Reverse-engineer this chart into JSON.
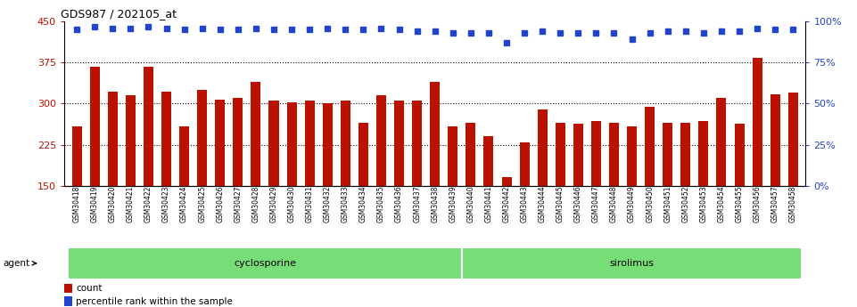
{
  "title": "GDS987 / 202105_at",
  "categories": [
    "GSM30418",
    "GSM30419",
    "GSM30420",
    "GSM30421",
    "GSM30422",
    "GSM30423",
    "GSM30424",
    "GSM30425",
    "GSM30426",
    "GSM30427",
    "GSM30428",
    "GSM30429",
    "GSM30430",
    "GSM30431",
    "GSM30432",
    "GSM30433",
    "GSM30434",
    "GSM30435",
    "GSM30436",
    "GSM30437",
    "GSM30438",
    "GSM30439",
    "GSM30440",
    "GSM30441",
    "GSM30442",
    "GSM30443",
    "GSM30444",
    "GSM30445",
    "GSM30446",
    "GSM30447",
    "GSM30448",
    "GSM30449",
    "GSM30450",
    "GSM30451",
    "GSM30452",
    "GSM30453",
    "GSM30454",
    "GSM30455",
    "GSM30456",
    "GSM30457",
    "GSM30458"
  ],
  "bar_values": [
    258,
    368,
    322,
    315,
    368,
    322,
    258,
    325,
    308,
    310,
    340,
    305,
    303,
    305,
    300,
    305,
    265,
    315,
    305,
    305,
    340,
    258,
    265,
    240,
    165,
    230,
    290,
    265,
    263,
    268,
    265,
    258,
    295,
    265,
    265,
    268,
    310,
    263,
    383,
    317,
    320
  ],
  "percentile_values": [
    95,
    97,
    96,
    96,
    97,
    96,
    95,
    96,
    95,
    95,
    96,
    95,
    95,
    95,
    96,
    95,
    95,
    96,
    95,
    94,
    94,
    93,
    93,
    93,
    87,
    93,
    94,
    93,
    93,
    93,
    93,
    89,
    93,
    94,
    94,
    93,
    94,
    94,
    96,
    95,
    95
  ],
  "group1_label": "cyclosporine",
  "group2_label": "sirolimus",
  "group1_count": 22,
  "bar_color": "#bb1100",
  "percentile_color": "#2244cc",
  "group_bg_color": "#77dd77",
  "ylim_left": [
    150,
    450
  ],
  "ylim_right": [
    0,
    100
  ],
  "yticks_left": [
    150,
    225,
    300,
    375,
    450
  ],
  "yticks_right": [
    0,
    25,
    50,
    75,
    100
  ],
  "legend_count_label": "count",
  "legend_pct_label": "percentile rank within the sample"
}
